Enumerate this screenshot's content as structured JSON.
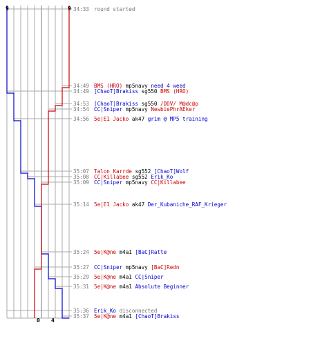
{
  "colors": {
    "blue_team": "#0000cc",
    "red_team": "#cc0000",
    "grid": "#aaaaaa",
    "grid_center": "#777777",
    "connector": "#aaaaaa",
    "timestamp": "#777777",
    "neutral": "#000000",
    "system": "#777777",
    "background": "#ffffff"
  },
  "scores": {
    "blue_start": "9",
    "red_start": "9",
    "blue_end": "0",
    "red_end": "4"
  },
  "events": [
    {
      "time": "34:33",
      "parts": [
        {
          "text": "round started",
          "color": "system"
        }
      ]
    },
    {
      "time": "34:49",
      "parts": [
        {
          "text": "BMS (HRO)",
          "color": "red_team"
        },
        {
          "text": " mp5navy ",
          "color": "neutral"
        },
        {
          "text": "need 4 weed",
          "color": "blue_team"
        }
      ]
    },
    {
      "time": "34:49",
      "parts": [
        {
          "text": "[ChaoT]Brakiss",
          "color": "blue_team"
        },
        {
          "text": " sg550 ",
          "color": "neutral"
        },
        {
          "text": "BMS (HRO)",
          "color": "red_team"
        }
      ]
    },
    {
      "time": "34:53",
      "parts": [
        {
          "text": "[ChaoT]Brakiss",
          "color": "blue_team"
        },
        {
          "text": " sg550 ",
          "color": "neutral"
        },
        {
          "text": "/DDV/ M@dc@p",
          "color": "red_team"
        }
      ]
    },
    {
      "time": "34:54",
      "parts": [
        {
          "text": "CC|Sniper",
          "color": "blue_team"
        },
        {
          "text": " mp5navy ",
          "color": "neutral"
        },
        {
          "text": "NewbiePhrAEker",
          "color": "red_team"
        }
      ]
    },
    {
      "time": "34:56",
      "parts": [
        {
          "text": "5e|E1 Jacko",
          "color": "red_team"
        },
        {
          "text": " ak47 ",
          "color": "neutral"
        },
        {
          "text": "grim @ MP5 training",
          "color": "blue_team"
        }
      ]
    },
    {
      "time": "35:07",
      "parts": [
        {
          "text": "Talon Karrde",
          "color": "red_team"
        },
        {
          "text": " sg552 ",
          "color": "neutral"
        },
        {
          "text": "[ChaoT]Wolf",
          "color": "blue_team"
        }
      ]
    },
    {
      "time": "35:08",
      "parts": [
        {
          "text": "CC|Killabee",
          "color": "red_team"
        },
        {
          "text": " sg552 ",
          "color": "neutral"
        },
        {
          "text": "Erik_Ko",
          "color": "blue_team"
        }
      ]
    },
    {
      "time": "35:09",
      "parts": [
        {
          "text": "CC|Sniper",
          "color": "blue_team"
        },
        {
          "text": " mp5navy ",
          "color": "neutral"
        },
        {
          "text": "CC|Killabee",
          "color": "red_team"
        }
      ]
    },
    {
      "time": "35:14",
      "parts": [
        {
          "text": "5e|E1 Jacko",
          "color": "red_team"
        },
        {
          "text": " ak47 ",
          "color": "neutral"
        },
        {
          "text": "Der_Kubaniche_RAF_Krieger",
          "color": "blue_team"
        }
      ]
    },
    {
      "time": "35:24",
      "parts": [
        {
          "text": "5e|K@ne",
          "color": "red_team"
        },
        {
          "text": " m4a1 ",
          "color": "neutral"
        },
        {
          "text": "[BaC]Ratte",
          "color": "blue_team"
        }
      ]
    },
    {
      "time": "35:27",
      "parts": [
        {
          "text": "CC|Sniper",
          "color": "blue_team"
        },
        {
          "text": " mp5navy ",
          "color": "neutral"
        },
        {
          "text": "[BaC]Redn",
          "color": "red_team"
        }
      ]
    },
    {
      "time": "35:29",
      "parts": [
        {
          "text": "5e|K@ne",
          "color": "red_team"
        },
        {
          "text": " m4a1 ",
          "color": "neutral"
        },
        {
          "text": "CC|Sniper",
          "color": "blue_team"
        }
      ]
    },
    {
      "time": "35:31",
      "parts": [
        {
          "text": "5e|K@ne",
          "color": "red_team"
        },
        {
          "text": " m4a1 ",
          "color": "neutral"
        },
        {
          "text": "Absolute Beginner",
          "color": "blue_team"
        }
      ]
    },
    {
      "time": "35:36",
      "parts": [
        {
          "text": "Erik_Ko",
          "color": "blue_team"
        },
        {
          "text": " disconnected",
          "color": "system"
        }
      ]
    },
    {
      "time": "35:37",
      "parts": [
        {
          "text": "5e|K@ne",
          "color": "red_team"
        },
        {
          "text": " m4a1 ",
          "color": "neutral"
        },
        {
          "text": "[ChaoT]Brakiss",
          "color": "blue_team"
        }
      ]
    }
  ],
  "chart_data": {
    "type": "line",
    "x_labels": [
      "34:33",
      "34:49",
      "34:49",
      "34:53",
      "34:54",
      "34:56",
      "35:07",
      "35:08",
      "35:09",
      "35:14",
      "35:24",
      "35:27",
      "35:29",
      "35:31",
      "35:36",
      "35:37"
    ],
    "ylim": [
      0,
      9
    ],
    "series": [
      {
        "color": "blue_team",
        "values": [
          9,
          9,
          8,
          8,
          8,
          7,
          6,
          5,
          5,
          4,
          3,
          3,
          2,
          1,
          1,
          0
        ]
      },
      {
        "color": "red_team",
        "values": [
          9,
          8,
          8,
          7,
          6,
          6,
          6,
          6,
          5,
          5,
          5,
          4,
          4,
          4,
          4,
          4
        ]
      }
    ]
  }
}
